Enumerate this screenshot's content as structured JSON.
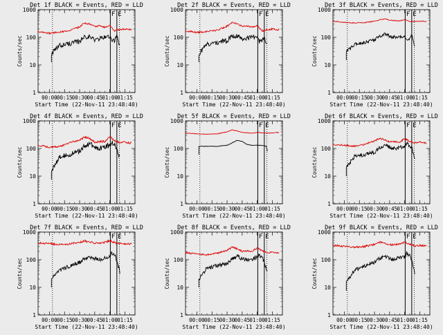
{
  "page": {
    "background": "#ebebeb",
    "curve_colors": {
      "events": "#000000",
      "lld": "#dd0000"
    }
  },
  "shared": {
    "xlabel": "Start Time (22-Nov-11 23:48:40)",
    "ylabel": "Counts/sec",
    "x_ticks": [
      "00:00",
      "00:15",
      "00:30",
      "00:45",
      "01:00",
      "01:15"
    ],
    "x_tick_values": [
      0,
      15,
      30,
      45,
      60,
      75
    ],
    "y_ticks": [
      "1",
      "10",
      "100",
      "1000"
    ],
    "y_tick_values": [
      1,
      10,
      100,
      1000
    ],
    "xlim": [
      -11.3,
      85
    ],
    "ylim": [
      1,
      1000
    ],
    "y_scale": "log",
    "dotted_vlines": [
      3,
      69.5
    ],
    "marker_labels": [
      "F",
      "E"
    ]
  },
  "chart_data": [
    {
      "type": "line",
      "title": "Det 1f BLACK = Events, RED = LLD",
      "events_start": 2,
      "events_end": 70,
      "step": 1,
      "dotted_vlines": [
        3,
        69.5
      ],
      "solid_vlines": [
        60.5,
        67
      ],
      "markers": [
        {
          "label": "F",
          "x": 61.5
        },
        {
          "label": "E",
          "x": 68
        }
      ],
      "series": [
        {
          "name": "Events",
          "color": "#000000",
          "x": [
            2,
            10,
            20,
            30,
            35,
            40,
            45,
            50,
            55,
            60,
            62,
            65,
            67,
            69,
            70
          ],
          "y": [
            25,
            50,
            60,
            70,
            110,
            105,
            80,
            90,
            100,
            110,
            70,
            80,
            120,
            60,
            55
          ],
          "noise": 0.18
        },
        {
          "name": "LLD",
          "color": "#dd0000",
          "x": [
            -10,
            0,
            10,
            20,
            30,
            35,
            40,
            45,
            50,
            55,
            60,
            65,
            70,
            75,
            80
          ],
          "y": [
            160,
            140,
            155,
            175,
            240,
            330,
            300,
            250,
            260,
            230,
            260,
            170,
            190,
            200,
            190
          ],
          "noise": 0.06
        }
      ]
    },
    {
      "type": "line",
      "title": "Det 2f BLACK = Events, RED = LLD",
      "events_start": 2,
      "events_end": 70,
      "step": 1,
      "dotted_vlines": [
        3,
        69.5
      ],
      "solid_vlines": [
        60.5,
        67
      ],
      "markers": [
        {
          "label": "F",
          "x": 61.5
        },
        {
          "label": "E",
          "x": 68
        }
      ],
      "series": [
        {
          "name": "Events",
          "color": "#000000",
          "x": [
            2,
            10,
            20,
            30,
            35,
            40,
            45,
            50,
            55,
            60,
            62,
            65,
            67,
            69,
            70
          ],
          "y": [
            25,
            55,
            65,
            75,
            120,
            110,
            90,
            95,
            100,
            110,
            70,
            80,
            120,
            60,
            50
          ],
          "noise": 0.18
        },
        {
          "name": "LLD",
          "color": "#dd0000",
          "x": [
            -10,
            0,
            10,
            20,
            30,
            35,
            40,
            45,
            50,
            55,
            60,
            65,
            70,
            75,
            80
          ],
          "y": [
            170,
            150,
            160,
            180,
            250,
            340,
            310,
            250,
            260,
            230,
            260,
            170,
            190,
            200,
            190
          ],
          "noise": 0.06
        }
      ]
    },
    {
      "type": "line",
      "title": "Det 3f BLACK = Events, RED = LLD",
      "events_start": 2,
      "events_end": 70,
      "step": 1,
      "dotted_vlines": [
        3,
        69.5
      ],
      "solid_vlines": [
        60.5,
        67
      ],
      "markers": [
        {
          "label": "F",
          "x": 61.5
        },
        {
          "label": "E",
          "x": 68
        }
      ],
      "series": [
        {
          "name": "Events",
          "color": "#000000",
          "x": [
            2,
            10,
            20,
            30,
            35,
            40,
            45,
            50,
            55,
            60,
            62,
            65,
            67,
            69,
            70
          ],
          "y": [
            30,
            55,
            65,
            80,
            110,
            130,
            110,
            100,
            100,
            110,
            80,
            90,
            120,
            60,
            50
          ],
          "noise": 0.12
        },
        {
          "name": "LLD",
          "color": "#dd0000",
          "x": [
            -10,
            0,
            10,
            20,
            30,
            35,
            40,
            45,
            50,
            55,
            60,
            65,
            70,
            75,
            80
          ],
          "y": [
            380,
            350,
            330,
            340,
            380,
            430,
            460,
            420,
            400,
            390,
            430,
            380,
            370,
            380,
            380
          ],
          "noise": 0.03
        }
      ]
    },
    {
      "type": "line",
      "title": "Det 4f BLACK = Events, RED = LLD",
      "events_start": 2,
      "events_end": 70,
      "step": 1,
      "dotted_vlines": [
        3,
        69.5
      ],
      "solid_vlines": [
        60.5,
        67
      ],
      "markers": [
        {
          "label": "F",
          "x": 61.5
        },
        {
          "label": "E",
          "x": 68
        }
      ],
      "series": [
        {
          "name": "Events",
          "color": "#000000",
          "x": [
            2,
            10,
            20,
            30,
            35,
            40,
            45,
            50,
            55,
            60,
            62,
            65,
            67,
            69,
            70
          ],
          "y": [
            15,
            50,
            60,
            80,
            130,
            150,
            110,
            100,
            120,
            130,
            170,
            140,
            100,
            60,
            50
          ],
          "noise": 0.18
        },
        {
          "name": "LLD",
          "color": "#dd0000",
          "x": [
            -10,
            0,
            10,
            20,
            30,
            35,
            40,
            45,
            50,
            55,
            60,
            65,
            70,
            75,
            80
          ],
          "y": [
            130,
            110,
            120,
            160,
            200,
            260,
            230,
            170,
            180,
            180,
            270,
            190,
            160,
            170,
            160
          ],
          "noise": 0.07
        }
      ]
    },
    {
      "type": "line",
      "title": "Det 5f BLACK = Events, RED = LLD",
      "events_start": 2,
      "events_end": 70,
      "step": 1,
      "dotted_vlines": [
        3,
        69.5
      ],
      "solid_vlines": [
        60.5,
        67
      ],
      "markers": [
        {
          "label": "F",
          "x": 61.5
        },
        {
          "label": "E",
          "x": 68
        }
      ],
      "series": [
        {
          "name": "Events",
          "color": "#000000",
          "x": [
            2,
            10,
            20,
            30,
            35,
            40,
            45,
            50,
            55,
            60,
            62,
            65,
            67,
            69,
            70
          ],
          "y": [
            120,
            120,
            120,
            130,
            160,
            200,
            180,
            140,
            130,
            130,
            130,
            130,
            125,
            120,
            80
          ],
          "noise": 0.02
        },
        {
          "name": "LLD",
          "color": "#dd0000",
          "x": [
            -10,
            0,
            10,
            20,
            30,
            35,
            40,
            45,
            50,
            55,
            60,
            65,
            70,
            75,
            80
          ],
          "y": [
            360,
            340,
            330,
            340,
            400,
            470,
            430,
            380,
            370,
            360,
            380,
            370,
            360,
            370,
            380
          ],
          "noise": 0.02
        }
      ]
    },
    {
      "type": "line",
      "title": "Det 6f BLACK = Events, RED = LLD",
      "events_start": 2,
      "events_end": 70,
      "step": 1,
      "dotted_vlines": [
        3,
        69.5
      ],
      "solid_vlines": [
        60.5,
        67
      ],
      "markers": [
        {
          "label": "F",
          "x": 61.5
        },
        {
          "label": "E",
          "x": 68
        }
      ],
      "series": [
        {
          "name": "Events",
          "color": "#000000",
          "x": [
            2,
            10,
            20,
            30,
            35,
            40,
            45,
            50,
            55,
            60,
            62,
            65,
            67,
            69,
            70
          ],
          "y": [
            20,
            50,
            60,
            70,
            110,
            130,
            110,
            100,
            110,
            120,
            160,
            130,
            110,
            60,
            40
          ],
          "noise": 0.15
        },
        {
          "name": "LLD",
          "color": "#dd0000",
          "x": [
            -10,
            0,
            10,
            20,
            30,
            35,
            40,
            45,
            50,
            55,
            60,
            65,
            70,
            75,
            80
          ],
          "y": [
            140,
            130,
            120,
            140,
            190,
            230,
            210,
            170,
            180,
            170,
            230,
            180,
            160,
            170,
            160
          ],
          "noise": 0.06
        }
      ]
    },
    {
      "type": "line",
      "title": "Det 7f BLACK = Events, RED = LLD",
      "events_start": 2,
      "events_end": 70,
      "step": 1,
      "dotted_vlines": [
        3,
        69.5
      ],
      "solid_vlines": [
        60.5,
        67
      ],
      "markers": [
        {
          "label": "F",
          "x": 61.5
        },
        {
          "label": "E",
          "x": 68
        }
      ],
      "series": [
        {
          "name": "Events",
          "color": "#000000",
          "x": [
            2,
            10,
            20,
            30,
            35,
            40,
            45,
            50,
            55,
            60,
            62,
            65,
            67,
            69,
            70
          ],
          "y": [
            20,
            40,
            60,
            80,
            110,
            130,
            110,
            100,
            120,
            130,
            170,
            140,
            90,
            50,
            35
          ],
          "noise": 0.15
        },
        {
          "name": "LLD",
          "color": "#dd0000",
          "x": [
            -10,
            0,
            10,
            20,
            30,
            35,
            40,
            45,
            50,
            55,
            60,
            65,
            70,
            75,
            80
          ],
          "y": [
            400,
            380,
            350,
            370,
            420,
            480,
            440,
            400,
            410,
            420,
            490,
            420,
            380,
            380,
            370
          ],
          "noise": 0.07
        }
      ]
    },
    {
      "type": "line",
      "title": "Det 8f BLACK = Events, RED = LLD",
      "events_start": 2,
      "events_end": 70,
      "step": 1,
      "dotted_vlines": [
        3,
        69.5
      ],
      "solid_vlines": [
        60.5,
        67
      ],
      "markers": [
        {
          "label": "F",
          "x": 61.5
        },
        {
          "label": "E",
          "x": 68
        }
      ],
      "series": [
        {
          "name": "Events",
          "color": "#000000",
          "x": [
            2,
            10,
            20,
            30,
            35,
            40,
            45,
            50,
            55,
            60,
            62,
            65,
            67,
            69,
            70
          ],
          "y": [
            20,
            50,
            60,
            70,
            110,
            130,
            110,
            100,
            110,
            120,
            150,
            120,
            80,
            50,
            40
          ],
          "noise": 0.15
        },
        {
          "name": "LLD",
          "color": "#dd0000",
          "x": [
            -10,
            0,
            10,
            20,
            30,
            35,
            40,
            45,
            50,
            55,
            60,
            65,
            70,
            75,
            80
          ],
          "y": [
            180,
            160,
            150,
            170,
            220,
            280,
            250,
            200,
            210,
            200,
            270,
            210,
            180,
            190,
            180
          ],
          "noise": 0.06
        }
      ]
    },
    {
      "type": "line",
      "title": "Det 9f BLACK = Events, RED = LLD",
      "events_start": 2,
      "events_end": 70,
      "step": 1,
      "dotted_vlines": [
        3,
        69.5
      ],
      "solid_vlines": [
        60.5,
        67
      ],
      "markers": [
        {
          "label": "F",
          "x": 61.5
        },
        {
          "label": "E",
          "x": 68
        }
      ],
      "series": [
        {
          "name": "Events",
          "color": "#000000",
          "x": [
            2,
            10,
            20,
            30,
            35,
            40,
            45,
            50,
            55,
            60,
            62,
            65,
            67,
            69,
            70
          ],
          "y": [
            15,
            40,
            60,
            80,
            110,
            130,
            110,
            100,
            120,
            130,
            170,
            140,
            90,
            50,
            35
          ],
          "noise": 0.15
        },
        {
          "name": "LLD",
          "color": "#dd0000",
          "x": [
            -10,
            0,
            10,
            20,
            30,
            35,
            40,
            45,
            50,
            55,
            60,
            65,
            70,
            75,
            80
          ],
          "y": [
            330,
            300,
            280,
            300,
            360,
            430,
            400,
            340,
            350,
            360,
            430,
            360,
            320,
            330,
            320
          ],
          "noise": 0.07
        }
      ]
    }
  ]
}
